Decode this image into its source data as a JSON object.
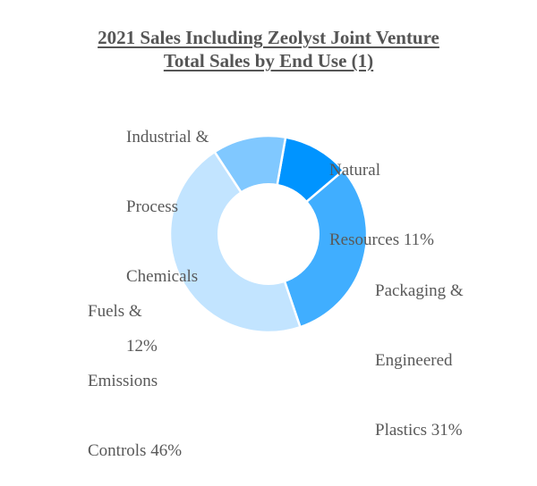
{
  "title": {
    "line1": "2021 Sales Including Zeolyst Joint Venture",
    "line2": "Total Sales by End Use (1)"
  },
  "labels": {
    "industrial": [
      "Industrial &",
      "Process",
      "Chemicals",
      "12%"
    ],
    "natural": [
      "Natural",
      "Resources 11%"
    ],
    "packaging": [
      "Packaging &",
      "Engineered",
      "Plastics 31%"
    ],
    "fuels": [
      "Fuels &",
      "Emissions",
      "Controls 46%"
    ]
  },
  "chart_data": {
    "type": "pie",
    "variant": "donut",
    "title": "2021 Sales Including Zeolyst Joint Venture — Total Sales by End Use (1)",
    "categories": [
      "Natural Resources",
      "Packaging & Engineered Plastics",
      "Fuels & Emissions Controls",
      "Industrial & Process Chemicals"
    ],
    "values": [
      11,
      31,
      46,
      12
    ],
    "unit": "%",
    "colors": [
      "#0094ff",
      "#40aeff",
      "#c2e4ff",
      "#80c8ff"
    ],
    "start_angle_deg": 10,
    "direction": "clockwise",
    "legend": "none (data labels outside slices)"
  }
}
